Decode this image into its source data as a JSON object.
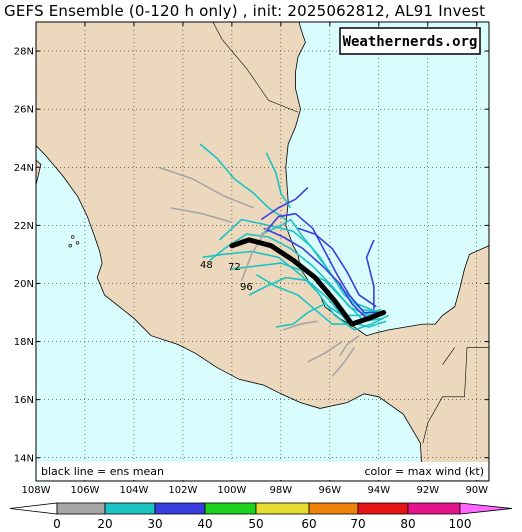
{
  "title": "GEFS Ensemble (0-120 h only) , init: 2025062812, AL91 Invest",
  "watermark": "Weathernerds.org",
  "notes": {
    "left": "black line = ens mean",
    "right": "color = max wind (kt)"
  },
  "map": {
    "lon_range": [
      -108,
      -89.5
    ],
    "lat_range": [
      13.2,
      29
    ],
    "lat_ticks": [
      "28N",
      "26N",
      "24N",
      "22N",
      "20N",
      "18N",
      "16N",
      "14N"
    ],
    "lat_values": [
      28,
      26,
      24,
      22,
      20,
      18,
      16,
      14
    ],
    "lon_ticks": [
      "108W",
      "106W",
      "104W",
      "102W",
      "100W",
      "98W",
      "96W",
      "94W",
      "92W",
      "90W"
    ],
    "lon_values": [
      -108,
      -106,
      -104,
      -102,
      -100,
      -98,
      -96,
      -94,
      -92,
      -90
    ],
    "colors": {
      "ocean": "#d9fdff",
      "land": "#ecd9bd",
      "coast": "#000000"
    },
    "mean_track": [
      [
        -100.0,
        21.3
      ],
      [
        -99.3,
        21.5
      ],
      [
        -98.4,
        21.3
      ],
      [
        -97.5,
        20.8
      ],
      [
        -96.6,
        20.2
      ],
      [
        -95.8,
        19.4
      ],
      [
        -95.1,
        18.6
      ],
      [
        -94.4,
        18.8
      ],
      [
        -93.8,
        19.0
      ]
    ],
    "track_labels": [
      "48",
      "72",
      "96"
    ]
  },
  "colorbar": {
    "labels": [
      "0",
      "20",
      "30",
      "40",
      "50",
      "60",
      "70",
      "80",
      "100"
    ],
    "colors": [
      "#a6a6a6",
      "#1dc3c3",
      "#3a3ee0",
      "#1cd21c",
      "#e6dc32",
      "#f0820a",
      "#e61414",
      "#e6148c",
      "#ff66ff"
    ]
  }
}
